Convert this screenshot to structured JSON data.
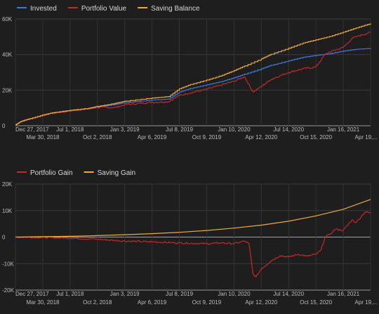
{
  "chart_data": [
    {
      "type": "line",
      "title": "",
      "xlabel": "",
      "ylabel": "",
      "x_range": [
        "2017-12-27",
        "2021-04-19"
      ],
      "x_ticks_top": [
        "Dec 27, 2017",
        "Jul 1, 2018",
        "Jan 3, 2019",
        "Jul 8, 2019",
        "Jan 10, 2020",
        "Jul 14, 2020",
        "Jan 16, 2021"
      ],
      "x_ticks_bottom": [
        "Mar 30, 2018",
        "Oct 2, 2018",
        "Apr 6, 2019",
        "Oct 9, 2019",
        "Apr 12, 2020",
        "Oct 15, 2020",
        "Apr 19,..."
      ],
      "y_ticks": [
        "0",
        "20K",
        "40K",
        "60K"
      ],
      "y_tick_values": [
        0,
        20000,
        40000,
        60000
      ],
      "ylim": [
        0,
        60000
      ],
      "grid": true,
      "legend_position": "top-left",
      "series": [
        {
          "name": "Invested",
          "color": "#3b78d8",
          "points": [
            [
              "2017-12-27",
              500
            ],
            [
              "2018-01-15",
              2500
            ],
            [
              "2018-02-15",
              4000
            ],
            [
              "2018-03-30",
              6000
            ],
            [
              "2018-05-01",
              7200
            ],
            [
              "2018-07-01",
              8500
            ],
            [
              "2018-09-01",
              9500
            ],
            [
              "2018-10-02",
              10500
            ],
            [
              "2018-12-01",
              12000
            ],
            [
              "2019-01-03",
              13000
            ],
            [
              "2019-04-06",
              14500
            ],
            [
              "2019-06-01",
              15000
            ],
            [
              "2019-07-08",
              19000
            ],
            [
              "2019-08-15",
              21000
            ],
            [
              "2019-10-09",
              23000
            ],
            [
              "2019-12-01",
              25000
            ],
            [
              "2020-01-10",
              27000
            ],
            [
              "2020-02-15",
              29000
            ],
            [
              "2020-04-12",
              32000
            ],
            [
              "2020-05-15",
              34000
            ],
            [
              "2020-07-14",
              36500
            ],
            [
              "2020-09-01",
              38500
            ],
            [
              "2020-10-15",
              39500
            ],
            [
              "2020-12-01",
              40500
            ],
            [
              "2021-01-16",
              42000
            ],
            [
              "2021-03-01",
              43000
            ],
            [
              "2021-04-19",
              43500
            ]
          ]
        },
        {
          "name": "Portfolio Value",
          "color": "#c62828",
          "points": [
            [
              "2017-12-27",
              500
            ],
            [
              "2018-01-15",
              2400
            ],
            [
              "2018-02-15",
              3900
            ],
            [
              "2018-03-30",
              5800
            ],
            [
              "2018-05-01",
              7000
            ],
            [
              "2018-07-01",
              8300
            ],
            [
              "2018-09-01",
              9600
            ],
            [
              "2018-10-02",
              10300
            ],
            [
              "2018-12-01",
              10200
            ],
            [
              "2019-01-03",
              11800
            ],
            [
              "2019-04-06",
              13200
            ],
            [
              "2019-06-01",
              13500
            ],
            [
              "2019-07-08",
              17000
            ],
            [
              "2019-08-15",
              18500
            ],
            [
              "2019-10-09",
              20500
            ],
            [
              "2019-12-01",
              23000
            ],
            [
              "2020-01-10",
              25000
            ],
            [
              "2020-02-15",
              27500
            ],
            [
              "2020-03-15",
              19000
            ],
            [
              "2020-04-12",
              22000
            ],
            [
              "2020-05-15",
              26000
            ],
            [
              "2020-07-14",
              30000
            ],
            [
              "2020-09-01",
              32000
            ],
            [
              "2020-10-15",
              33000
            ],
            [
              "2020-11-15",
              40000
            ],
            [
              "2020-12-01",
              41500
            ],
            [
              "2021-01-16",
              44000
            ],
            [
              "2021-02-15",
              49000
            ],
            [
              "2021-03-01",
              50000
            ],
            [
              "2021-04-19",
              52500
            ]
          ]
        },
        {
          "name": "Saving Balance",
          "color": "#f2a93b",
          "points": [
            [
              "2017-12-27",
              500
            ],
            [
              "2018-01-15",
              2500
            ],
            [
              "2018-02-15",
              4000
            ],
            [
              "2018-03-30",
              6000
            ],
            [
              "2018-05-01",
              7300
            ],
            [
              "2018-07-01",
              8700
            ],
            [
              "2018-09-01",
              9800
            ],
            [
              "2018-10-02",
              10900
            ],
            [
              "2018-12-01",
              12600
            ],
            [
              "2019-01-03",
              13800
            ],
            [
              "2019-04-06",
              15600
            ],
            [
              "2019-06-01",
              16400
            ],
            [
              "2019-07-08",
              20800
            ],
            [
              "2019-08-15",
              23200
            ],
            [
              "2019-10-09",
              25700
            ],
            [
              "2019-12-01",
              28400
            ],
            [
              "2020-01-10",
              31000
            ],
            [
              "2020-02-15",
              33600
            ],
            [
              "2020-04-12",
              37600
            ],
            [
              "2020-05-15",
              40200
            ],
            [
              "2020-07-14",
              43600
            ],
            [
              "2020-09-01",
              46500
            ],
            [
              "2020-10-15",
              48300
            ],
            [
              "2020-12-01",
              50200
            ],
            [
              "2021-01-16",
              52600
            ],
            [
              "2021-03-01",
              55000
            ],
            [
              "2021-04-19",
              57500
            ]
          ]
        }
      ]
    },
    {
      "type": "line",
      "title": "",
      "xlabel": "",
      "ylabel": "",
      "x_range": [
        "2017-12-27",
        "2021-04-19"
      ],
      "x_ticks_top": [
        "Dec 27, 2017",
        "Jul 1, 2018",
        "Jan 3, 2019",
        "Jul 8, 2019",
        "Jan 10, 2020",
        "Jul 14, 2020",
        "Jan 16, 2021"
      ],
      "x_ticks_bottom": [
        "Mar 30, 2018",
        "Oct 2, 2018",
        "Apr 6, 2019",
        "Oct 9, 2019",
        "Apr 12, 2020",
        "Oct 15, 2020",
        "Apr 19,..."
      ],
      "y_ticks": [
        "-20K",
        "-10K",
        "0",
        "10K",
        "20K"
      ],
      "y_tick_values": [
        -20000,
        -10000,
        0,
        10000,
        20000
      ],
      "ylim": [
        -20000,
        20000
      ],
      "grid": true,
      "legend_position": "top-left",
      "series": [
        {
          "name": "Portfolio Gain",
          "color": "#c62828",
          "points": [
            [
              "2017-12-27",
              0
            ],
            [
              "2018-03-30",
              -200
            ],
            [
              "2018-07-01",
              -400
            ],
            [
              "2018-10-02",
              -800
            ],
            [
              "2019-01-03",
              -1500
            ],
            [
              "2019-04-06",
              -1800
            ],
            [
              "2019-07-08",
              -2200
            ],
            [
              "2019-10-09",
              -2500
            ],
            [
              "2019-12-01",
              -2200
            ],
            [
              "2020-01-10",
              -2500
            ],
            [
              "2020-02-15",
              -1500
            ],
            [
              "2020-03-01",
              -2500
            ],
            [
              "2020-03-15",
              -14000
            ],
            [
              "2020-03-25",
              -15000
            ],
            [
              "2020-04-12",
              -12000
            ],
            [
              "2020-05-15",
              -9000
            ],
            [
              "2020-06-15",
              -7000
            ],
            [
              "2020-07-14",
              -7500
            ],
            [
              "2020-08-15",
              -6500
            ],
            [
              "2020-09-15",
              -7200
            ],
            [
              "2020-10-15",
              -6500
            ],
            [
              "2020-11-01",
              -5000
            ],
            [
              "2020-11-15",
              0
            ],
            [
              "2020-12-01",
              1000
            ],
            [
              "2020-12-20",
              3000
            ],
            [
              "2021-01-16",
              2500
            ],
            [
              "2021-02-15",
              6500
            ],
            [
              "2021-03-01",
              5500
            ],
            [
              "2021-03-20",
              8000
            ],
            [
              "2021-04-01",
              9500
            ],
            [
              "2021-04-19",
              9000
            ]
          ]
        },
        {
          "name": "Saving Gain",
          "color": "#f2a93b",
          "points": [
            [
              "2017-12-27",
              0
            ],
            [
              "2018-03-30",
              150
            ],
            [
              "2018-07-01",
              300
            ],
            [
              "2018-10-02",
              550
            ],
            [
              "2019-01-03",
              900
            ],
            [
              "2019-04-06",
              1300
            ],
            [
              "2019-07-08",
              1800
            ],
            [
              "2019-10-09",
              2500
            ],
            [
              "2020-01-10",
              3400
            ],
            [
              "2020-04-12",
              4500
            ],
            [
              "2020-07-14",
              6000
            ],
            [
              "2020-10-15",
              8000
            ],
            [
              "2021-01-16",
              10500
            ],
            [
              "2021-04-19",
              14200
            ]
          ]
        }
      ]
    }
  ]
}
